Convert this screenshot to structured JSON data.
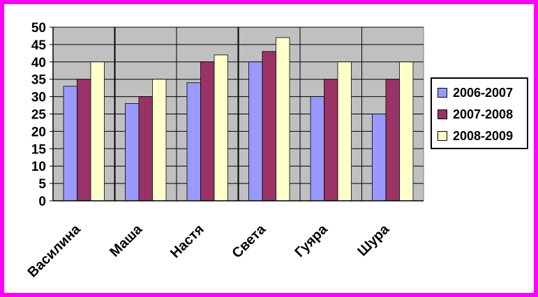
{
  "chart_data": {
    "type": "bar",
    "title": "",
    "xlabel": "",
    "ylabel": "",
    "categories": [
      "Василина",
      "Маша",
      "Настя",
      "Света",
      "Гуяра",
      "Шура"
    ],
    "series": [
      {
        "name": "2006-2007",
        "color": "#9999ff",
        "values": [
          33,
          28,
          34,
          40,
          30,
          25
        ]
      },
      {
        "name": "2007-2008",
        "color": "#993366",
        "values": [
          35,
          30,
          40,
          43,
          35,
          35
        ]
      },
      {
        "name": "2008-2009",
        "color": "#ffffcc",
        "values": [
          40,
          35,
          42,
          47,
          40,
          40
        ]
      }
    ],
    "ylim": [
      0,
      50
    ],
    "yticks": [
      "0",
      "5",
      "10",
      "15",
      "20",
      "25",
      "30",
      "35",
      "40",
      "45",
      "50"
    ],
    "grid": true,
    "plot_background": "#c0c0c0",
    "border_color": "#ff00ff",
    "legend_position": "right"
  }
}
